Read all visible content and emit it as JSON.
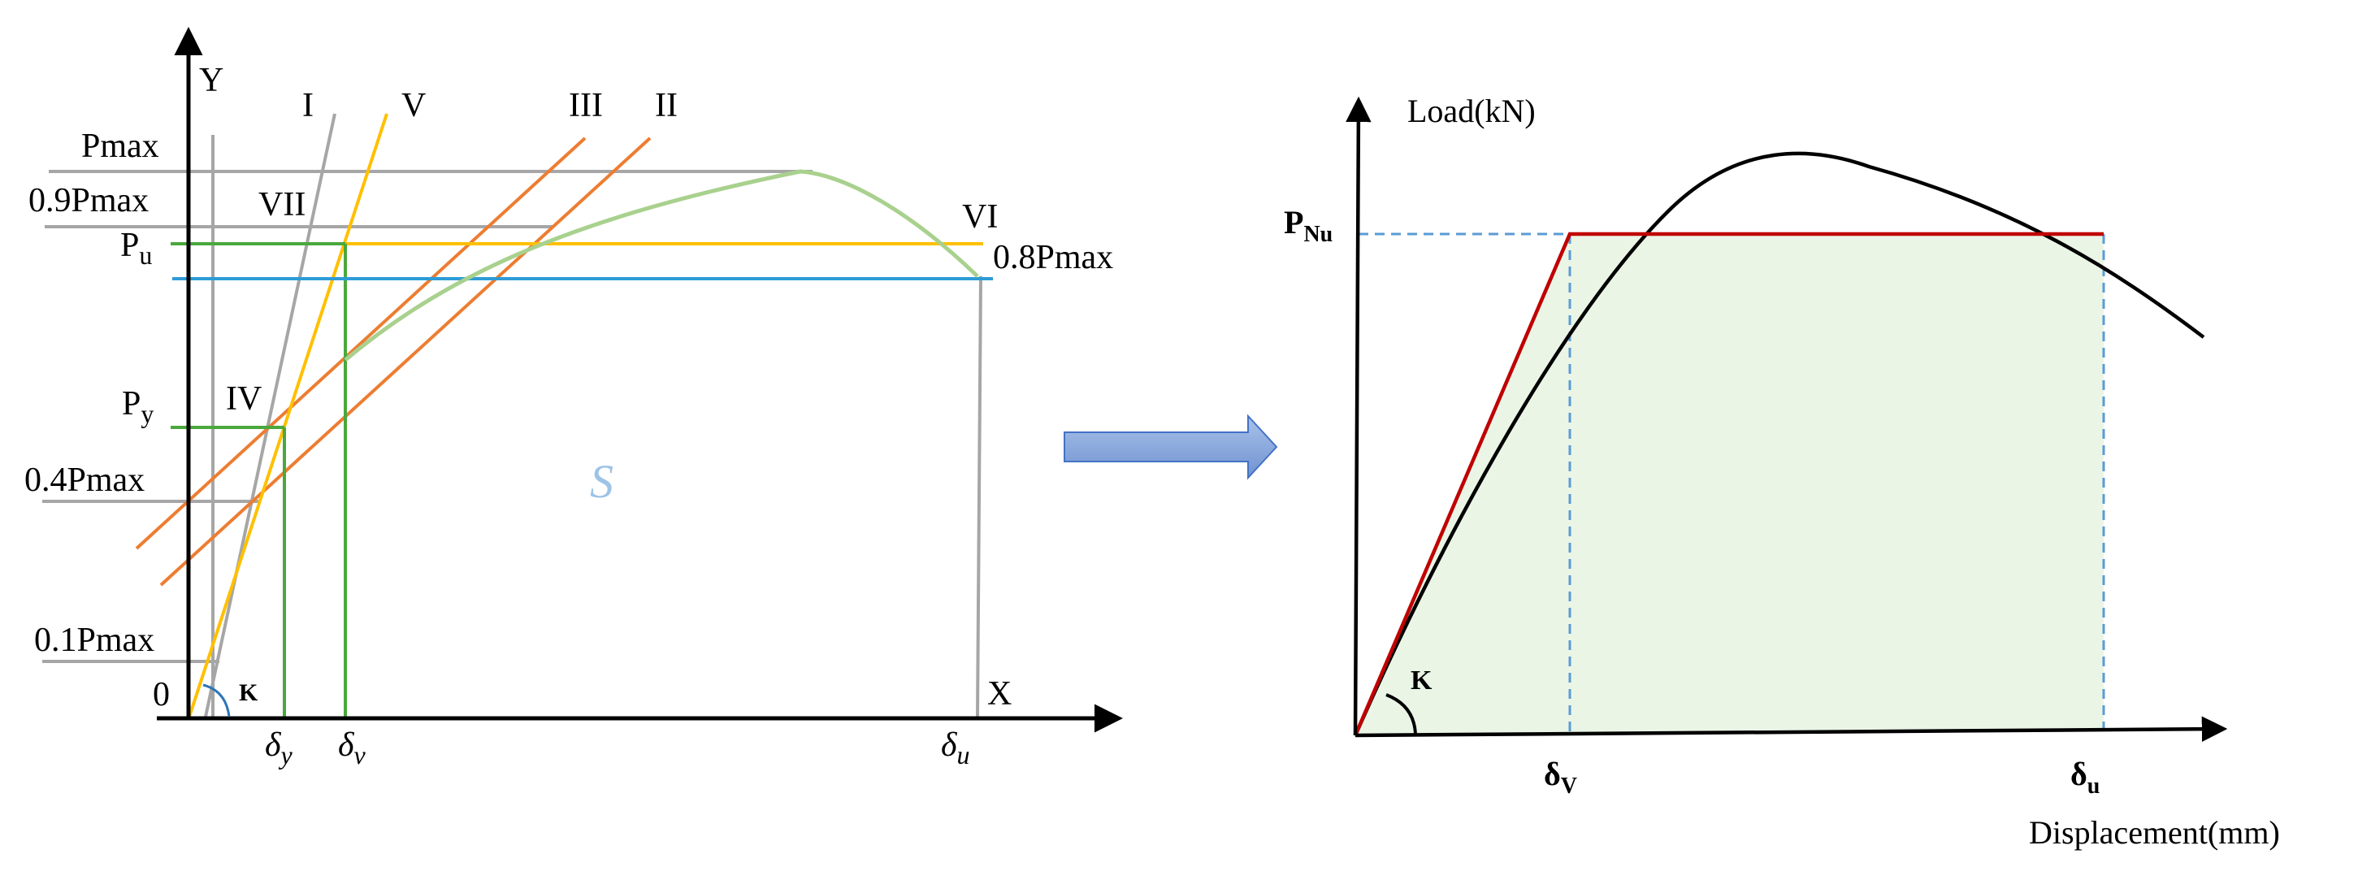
{
  "left_figure": {
    "axis_y_label": "Y",
    "axis_x_label": "X",
    "origin_label": "0",
    "line_labels": {
      "I": "I",
      "II": "II",
      "III": "III",
      "IV": "IV",
      "V": "V",
      "VI": "VI",
      "VII": "VII"
    },
    "y_levels": {
      "pmax": "Pmax",
      "p09": "0.9Pmax",
      "pu_main": "P",
      "pu_sub": "u",
      "p08": "0.8Pmax",
      "py_main": "P",
      "py_sub": "y",
      "p04": "0.4Pmax",
      "p01": "0.1Pmax"
    },
    "x_marks": {
      "dy_main": "δ",
      "dy_sub": "y",
      "dv_main": "δ",
      "dv_sub": "v",
      "du_main": "δ",
      "du_sub": "u"
    },
    "angle_label": "K",
    "area_label": "S"
  },
  "right_figure": {
    "ylabel": "Load(kN)",
    "xlabel": "Displacement(mm)",
    "pnu_main": "P",
    "pnu_sub": "Nu",
    "dv_main": "δ",
    "dv_sub": "V",
    "du_main": "δ",
    "du_sub": "u",
    "angle_label": "K"
  },
  "colors": {
    "axis": "#000000",
    "gray": "#a6a6a6",
    "orange": "#ed7d31",
    "yellow": "#ffc000",
    "green_line": "#4aa83c",
    "blue_line": "#2e9bd6",
    "curve_green": "#a9d18e",
    "red": "#c00000",
    "dashed_blue": "#5b9bd5",
    "fill_green": "#eaf5e6",
    "arrow_fill": "#8faadc",
    "area_S": "#9dc3e6"
  }
}
